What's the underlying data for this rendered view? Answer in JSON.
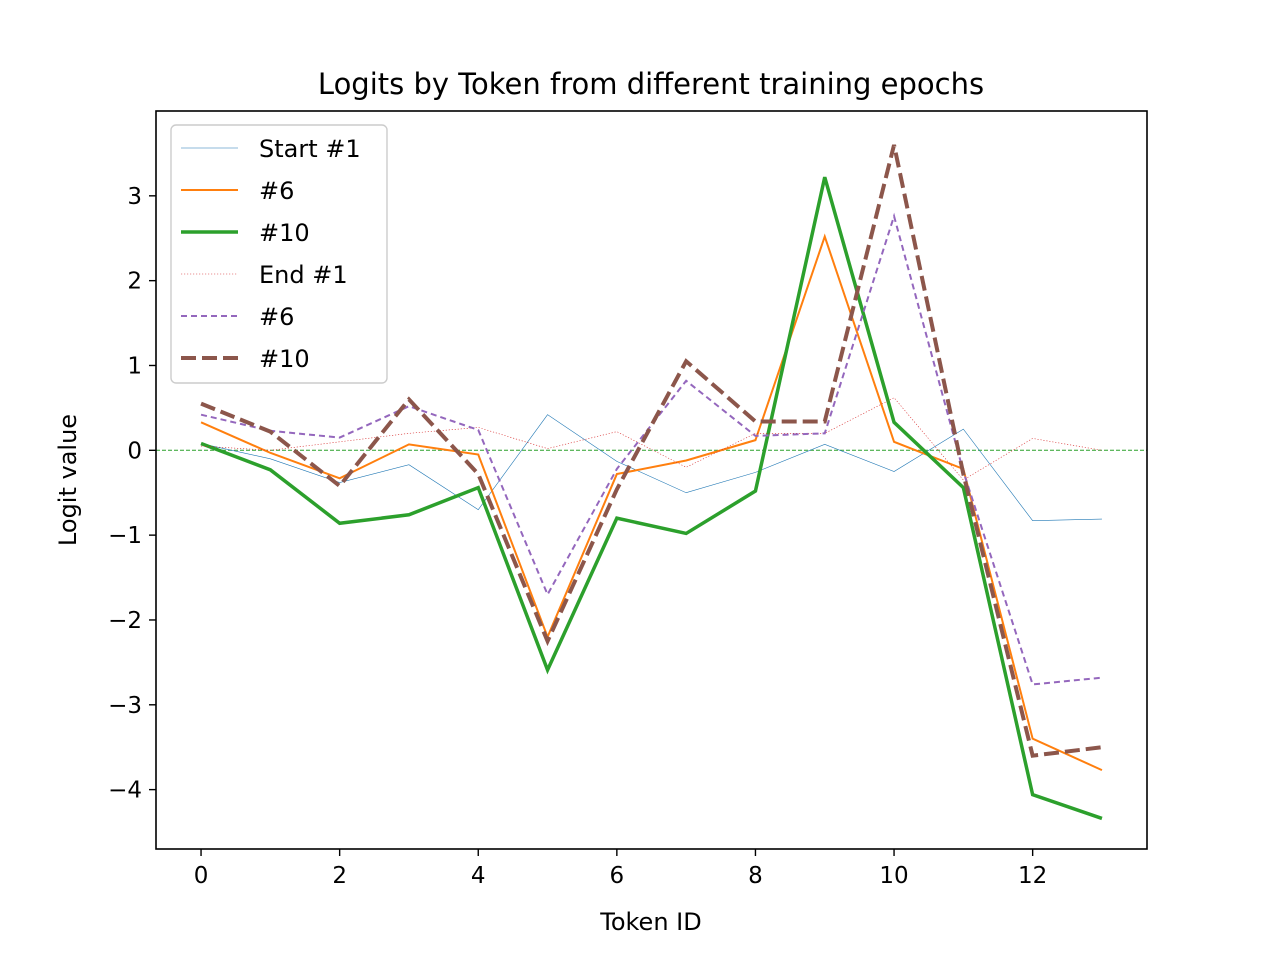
{
  "chart_data": {
    "type": "line",
    "title": "Logits by Token from different training epochs",
    "xlabel": "Token ID",
    "ylabel": "Logit value",
    "xlim": [
      -0.65,
      13.65
    ],
    "ylim": [
      -4.7,
      4.0
    ],
    "xticks": [
      0,
      2,
      4,
      6,
      8,
      10,
      12
    ],
    "yticks": [
      3,
      2,
      1,
      0,
      -1,
      -2,
      -3,
      -4
    ],
    "legend_position": "upper-left",
    "reference_line": {
      "y": 0,
      "color": "#2ca02c",
      "style": "dashed"
    },
    "x": [
      0,
      1,
      2,
      3,
      4,
      5,
      6,
      7,
      8,
      9,
      10,
      11,
      12,
      13
    ],
    "series": [
      {
        "name": "Start #1",
        "color": "#1f77b4",
        "style": "solid",
        "width": 0.6,
        "values": [
          0.08,
          -0.1,
          -0.38,
          -0.17,
          -0.7,
          0.42,
          -0.13,
          -0.5,
          -0.26,
          0.07,
          -0.25,
          0.25,
          -0.83,
          -0.81
        ]
      },
      {
        "name": "#6",
        "color": "#ff7f0e",
        "style": "solid",
        "width": 2,
        "values": [
          0.33,
          -0.03,
          -0.33,
          0.07,
          -0.05,
          -2.2,
          -0.28,
          -0.12,
          0.12,
          2.52,
          0.1,
          -0.22,
          -3.4,
          -3.77
        ]
      },
      {
        "name": "#10",
        "color": "#2ca02c",
        "style": "solid",
        "width": 3.5,
        "values": [
          0.08,
          -0.23,
          -0.86,
          -0.76,
          -0.44,
          -2.59,
          -0.8,
          -0.98,
          -0.48,
          3.22,
          0.33,
          -0.44,
          -4.06,
          -4.34
        ]
      },
      {
        "name": "End #1",
        "color": "#d62728",
        "style": "dotted",
        "width": 0.6,
        "values": [
          0.05,
          0.0,
          0.1,
          0.2,
          0.27,
          0.02,
          0.22,
          -0.2,
          0.2,
          0.2,
          0.62,
          -0.35,
          0.14,
          0.0
        ]
      },
      {
        "name": "#6",
        "color": "#9467bd",
        "style": "dashed",
        "width": 2,
        "values": [
          0.42,
          0.23,
          0.15,
          0.52,
          0.24,
          -1.7,
          -0.22,
          0.82,
          0.17,
          0.2,
          2.76,
          -0.25,
          -2.76,
          -2.68
        ]
      },
      {
        "name": "#10",
        "color": "#8c564b",
        "style": "dashed",
        "width": 4,
        "values": [
          0.55,
          0.22,
          -0.42,
          0.6,
          -0.28,
          -2.25,
          -0.46,
          1.05,
          0.34,
          0.34,
          3.6,
          -0.28,
          -3.6,
          -3.5
        ]
      }
    ]
  }
}
